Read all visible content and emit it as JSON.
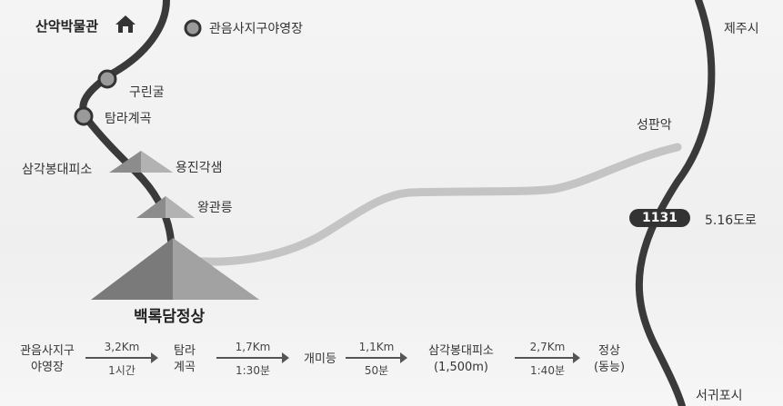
{
  "map": {
    "places": {
      "museum": "산악박물관",
      "campsite": "관음사지구야영장",
      "jeju_city": "제주시",
      "gurin_cave": "구린굴",
      "tamna_valley": "탐라계곡",
      "samgak_shelter": "삼각봉대피소",
      "yongjin_gaksaem": "용진각샘",
      "wanggwan_reung": "왕관릉",
      "seongpan_ak": "성판악",
      "road_516": "5.16도로",
      "seogwipo_city": "서귀포시",
      "summit": "백록담정상"
    },
    "route_badge": "1131"
  },
  "schedule": {
    "stops": [
      {
        "line1": "관음사지구",
        "line2": "야영장"
      },
      {
        "line1": "탐라",
        "line2": "계곡"
      },
      {
        "line1": "개미등",
        "line2": ""
      },
      {
        "line1": "삼각봉대피소",
        "line2": "(1,500m)"
      },
      {
        "line1": "정상",
        "line2": "(동능)"
      }
    ],
    "legs": [
      {
        "distance": "3,2Km",
        "time": "1시간"
      },
      {
        "distance": "1,7Km",
        "time": "1:30분"
      },
      {
        "distance": "1,1Km",
        "time": "50분"
      },
      {
        "distance": "2,7Km",
        "time": "1:40분"
      }
    ]
  }
}
